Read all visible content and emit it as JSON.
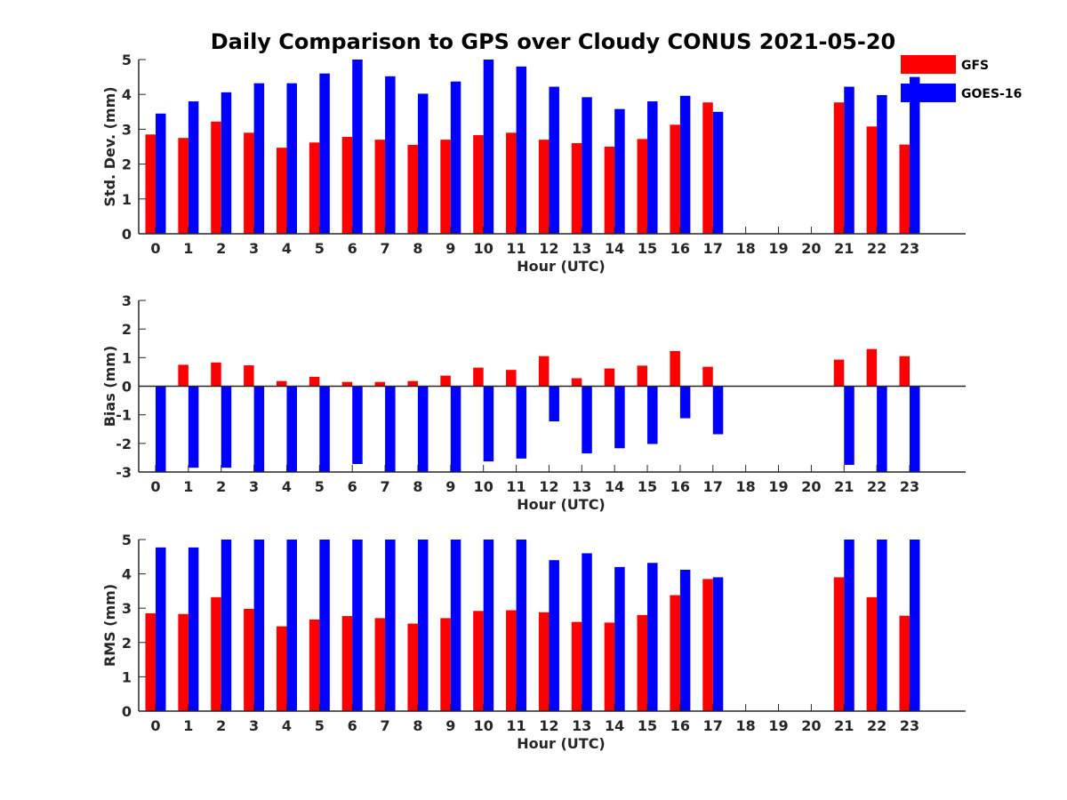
{
  "title": "Daily Comparison to GPS over Cloudy CONUS 2021-05-20",
  "legend": {
    "placement": "top-right",
    "entries": [
      {
        "name": "GFS",
        "color": "#ff0000"
      },
      {
        "name": "GOES-16",
        "color": "#0000ff"
      }
    ]
  },
  "chart_data": [
    {
      "type": "bar",
      "ylabel": "Std. Dev. (mm)",
      "xlabel": "Hour (UTC)",
      "ylim": [
        0,
        5
      ],
      "yticks": [
        0,
        1,
        2,
        3,
        4,
        5
      ],
      "categories": [
        "0",
        "1",
        "2",
        "3",
        "4",
        "5",
        "6",
        "7",
        "8",
        "9",
        "10",
        "11",
        "12",
        "13",
        "14",
        "15",
        "16",
        "17",
        "18",
        "19",
        "20",
        "21",
        "22",
        "23"
      ],
      "series": [
        {
          "name": "GFS",
          "color": "#ff0000",
          "values": [
            2.85,
            2.75,
            3.22,
            2.9,
            2.47,
            2.62,
            2.78,
            2.7,
            2.55,
            2.7,
            2.83,
            2.9,
            2.7,
            2.6,
            2.5,
            2.72,
            3.13,
            3.77,
            null,
            null,
            null,
            3.77,
            3.08,
            2.56
          ]
        },
        {
          "name": "GOES-16",
          "color": "#0000ff",
          "values": [
            3.45,
            3.8,
            4.06,
            4.32,
            4.32,
            4.6,
            5.0,
            4.52,
            4.02,
            4.37,
            5.0,
            4.8,
            4.22,
            3.92,
            3.58,
            3.8,
            3.96,
            3.5,
            null,
            null,
            null,
            4.22,
            3.98,
            4.5
          ]
        }
      ]
    },
    {
      "type": "bar",
      "ylabel": "Bias (mm)",
      "xlabel": "Hour (UTC)",
      "ylim": [
        -3,
        3
      ],
      "yticks": [
        -3,
        -2,
        -1,
        0,
        1,
        2,
        3
      ],
      "zero_line": true,
      "categories": [
        "0",
        "1",
        "2",
        "3",
        "4",
        "5",
        "6",
        "7",
        "8",
        "9",
        "10",
        "11",
        "12",
        "13",
        "14",
        "15",
        "16",
        "17",
        "18",
        "19",
        "20",
        "21",
        "22",
        "23"
      ],
      "series": [
        {
          "name": "GFS",
          "color": "#ff0000",
          "values": [
            0.0,
            0.75,
            0.83,
            0.73,
            0.18,
            0.33,
            0.15,
            0.15,
            0.18,
            0.37,
            0.65,
            0.57,
            1.05,
            0.28,
            0.62,
            0.72,
            1.23,
            0.68,
            null,
            null,
            null,
            0.93,
            1.3,
            1.05
          ]
        },
        {
          "name": "GOES-16",
          "color": "#0000ff",
          "values": [
            -3.0,
            -2.85,
            -2.85,
            -3.0,
            -3.0,
            -3.0,
            -2.72,
            -3.0,
            -3.0,
            -3.0,
            -2.63,
            -2.53,
            -1.23,
            -2.35,
            -2.17,
            -2.02,
            -1.12,
            -1.68,
            null,
            null,
            null,
            -2.75,
            -3.0,
            -3.0
          ]
        }
      ]
    },
    {
      "type": "bar",
      "ylabel": "RMS (mm)",
      "xlabel": "Hour (UTC)",
      "ylim": [
        0,
        5
      ],
      "yticks": [
        0,
        1,
        2,
        3,
        4,
        5
      ],
      "categories": [
        "0",
        "1",
        "2",
        "3",
        "4",
        "5",
        "6",
        "7",
        "8",
        "9",
        "10",
        "11",
        "12",
        "13",
        "14",
        "15",
        "16",
        "17",
        "18",
        "19",
        "20",
        "21",
        "22",
        "23"
      ],
      "series": [
        {
          "name": "GFS",
          "color": "#ff0000",
          "values": [
            2.85,
            2.83,
            3.32,
            2.98,
            2.47,
            2.67,
            2.77,
            2.71,
            2.55,
            2.71,
            2.92,
            2.94,
            2.88,
            2.6,
            2.58,
            2.8,
            3.38,
            3.85,
            null,
            null,
            null,
            3.9,
            3.32,
            2.78
          ]
        },
        {
          "name": "GOES-16",
          "color": "#0000ff",
          "values": [
            4.77,
            4.77,
            5.0,
            5.0,
            5.0,
            5.0,
            5.0,
            5.0,
            5.0,
            5.0,
            5.0,
            5.0,
            4.4,
            4.6,
            4.2,
            4.32,
            4.12,
            3.9,
            null,
            null,
            null,
            5.0,
            5.0,
            5.0
          ]
        }
      ]
    }
  ]
}
